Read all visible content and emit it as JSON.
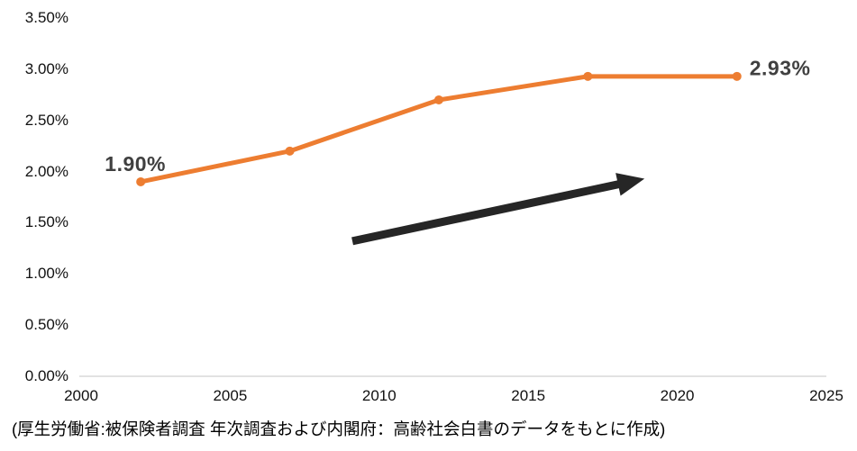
{
  "caption": "(厚生労働省:被保険者調査 年次調査および内閣府：高齢社会白書のデータをもとに作成)",
  "colors": {
    "background": "#FFFFFF",
    "series": "#ED7D31",
    "arrow": "#262626",
    "axis_line": "#D9D9D9",
    "tick_text": "#111111",
    "data_label_text": "#404040"
  },
  "chart_data": {
    "type": "line",
    "title": "",
    "xlabel": "",
    "ylabel": "",
    "x": [
      2002,
      2007,
      2012,
      2017,
      2022
    ],
    "series": [
      {
        "name": "rate",
        "values": [
          1.9,
          2.2,
          2.7,
          2.93,
          2.93
        ]
      }
    ],
    "xlim": [
      2000,
      2025
    ],
    "ylim": [
      0,
      3.5
    ],
    "x_ticks": {
      "values": [
        2000,
        2005,
        2010,
        2015,
        2020,
        2025
      ],
      "labels": [
        "2000",
        "2005",
        "2010",
        "2015",
        "2020",
        "2025"
      ]
    },
    "y_ticks": {
      "values": [
        0,
        0.5,
        1.0,
        1.5,
        2.0,
        2.5,
        3.0,
        3.5
      ],
      "labels": [
        "0.00%",
        "0.50%",
        "1.00%",
        "1.50%",
        "2.00%",
        "2.50%",
        "3.00%",
        "3.50%"
      ]
    },
    "grid": false,
    "legend": false,
    "data_labels": [
      {
        "text": "1.90%",
        "point_index": 0,
        "position": "above-left"
      },
      {
        "text": "2.93%",
        "point_index": 4,
        "position": "right"
      }
    ],
    "annotations": [
      {
        "type": "arrow",
        "from": {
          "x": 2009.1,
          "y": 1.32
        },
        "to": {
          "x": 2018.9,
          "y": 1.93
        }
      }
    ]
  }
}
